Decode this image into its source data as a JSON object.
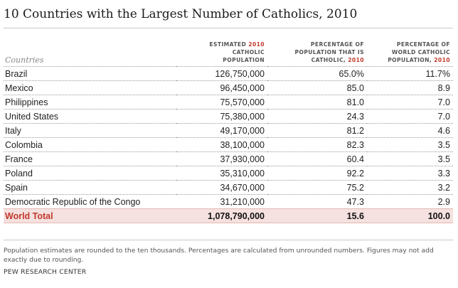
{
  "title": "10 Countries with the Largest Number of Catholics, 2010",
  "colors": {
    "year_accent": "#c0392b",
    "total_row_bg": "#f5e1df"
  },
  "headers": {
    "country": "Countries",
    "population": {
      "line1": "ESTIMATED ",
      "year": "2010",
      "line2": "CATHOLIC",
      "line3": "POPULATION"
    },
    "pct_population": {
      "line1": "PERCENTAGE OF",
      "line2": "POPULATION THAT IS",
      "line3": "CATHOLIC, ",
      "year": "2010"
    },
    "pct_world": {
      "line1": "PERCENTAGE OF",
      "line2": "WORLD CATHOLIC",
      "line3": "POPULATION, ",
      "year": "2010"
    }
  },
  "rows": [
    {
      "country": "Brazil",
      "population": "126,750,000",
      "pct_population": "65.0%",
      "pct_world": "11.7%"
    },
    {
      "country": "Mexico",
      "population": "96,450,000",
      "pct_population": "85.0",
      "pct_world": "8.9"
    },
    {
      "country": "Philippines",
      "population": "75,570,000",
      "pct_population": "81.0",
      "pct_world": "7.0"
    },
    {
      "country": "United States",
      "population": "75,380,000",
      "pct_population": "24.3",
      "pct_world": "7.0"
    },
    {
      "country": "Italy",
      "population": "49,170,000",
      "pct_population": "81.2",
      "pct_world": "4.6"
    },
    {
      "country": "Colombia",
      "population": "38,100,000",
      "pct_population": "82.3",
      "pct_world": "3.5"
    },
    {
      "country": "France",
      "population": "37,930,000",
      "pct_population": "60.4",
      "pct_world": "3.5"
    },
    {
      "country": "Poland",
      "population": "35,310,000",
      "pct_population": "92.2",
      "pct_world": "3.3"
    },
    {
      "country": "Spain",
      "population": "34,670,000",
      "pct_population": "75.2",
      "pct_world": "3.2"
    },
    {
      "country": "Democratic Republic of the Congo",
      "population": "31,210,000",
      "pct_population": "47.3",
      "pct_world": "2.9"
    }
  ],
  "total": {
    "country": "World Total",
    "population": "1,078,790,000",
    "pct_population": "15.6",
    "pct_world": "100.0"
  },
  "note": "Population estimates are rounded to the ten thousands. Percentages are calculated from unrounded numbers. Figures may not add exactly due to rounding.",
  "source": "PEW RESEARCH CENTER"
}
